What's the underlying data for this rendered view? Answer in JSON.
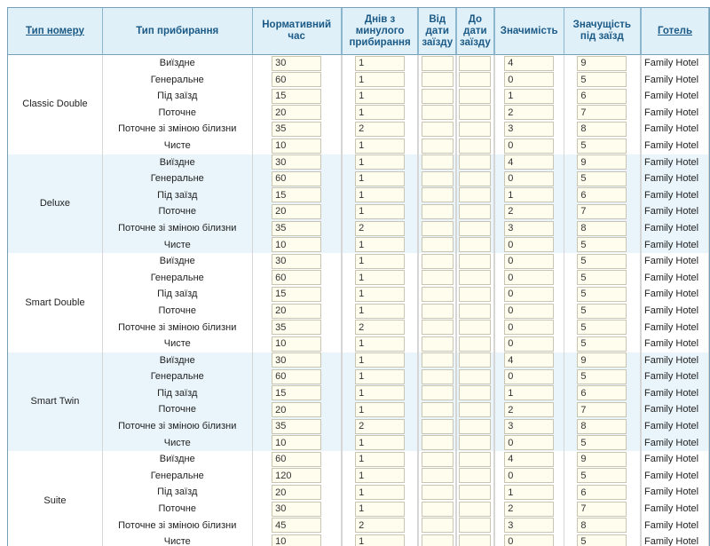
{
  "colors": {
    "header_bg": "#dff0f9",
    "header_text": "#1b5a86",
    "outer_border": "#76a0b8",
    "minor_border": "#d6d6d6",
    "stripe_bg": "#e9f5fb",
    "input_bg": "#fffdee",
    "input_border": "#c9c5b2",
    "body_text": "#222222"
  },
  "table": {
    "columns": [
      {
        "label": "Тип номеру",
        "link": true
      },
      {
        "label": "Тип прибирання",
        "link": false
      },
      {
        "label": "Нормативний час",
        "link": false
      },
      {
        "label": "Днів з минулого прибирання",
        "link": false
      },
      {
        "label": "Від дати заїзду",
        "link": false
      },
      {
        "label": "До дати заїзду",
        "link": false
      },
      {
        "label": "Значимість",
        "link": false
      },
      {
        "label": "Значущість під заїзд",
        "link": false
      },
      {
        "label": "Готель",
        "link": true
      }
    ],
    "groups": [
      {
        "room_type": "Classic Double",
        "rows": [
          {
            "cleaning_type": "Виїздне",
            "norm_time": "30",
            "days_since": "1",
            "from_date": "",
            "to_date": "",
            "significance": "4",
            "checkin_significance": "9",
            "hotel": "Family Hotel"
          },
          {
            "cleaning_type": "Генеральне",
            "norm_time": "60",
            "days_since": "1",
            "from_date": "",
            "to_date": "",
            "significance": "0",
            "checkin_significance": "5",
            "hotel": "Family Hotel"
          },
          {
            "cleaning_type": "Під заїзд",
            "norm_time": "15",
            "days_since": "1",
            "from_date": "",
            "to_date": "",
            "significance": "1",
            "checkin_significance": "6",
            "hotel": "Family Hotel"
          },
          {
            "cleaning_type": "Поточне",
            "norm_time": "20",
            "days_since": "1",
            "from_date": "",
            "to_date": "",
            "significance": "2",
            "checkin_significance": "7",
            "hotel": "Family Hotel"
          },
          {
            "cleaning_type": "Поточне зі зміною білизни",
            "norm_time": "35",
            "days_since": "2",
            "from_date": "",
            "to_date": "",
            "significance": "3",
            "checkin_significance": "8",
            "hotel": "Family Hotel"
          },
          {
            "cleaning_type": "Чисте",
            "norm_time": "10",
            "days_since": "1",
            "from_date": "",
            "to_date": "",
            "significance": "0",
            "checkin_significance": "5",
            "hotel": "Family Hotel"
          }
        ]
      },
      {
        "room_type": "Deluxe",
        "rows": [
          {
            "cleaning_type": "Виїздне",
            "norm_time": "30",
            "days_since": "1",
            "from_date": "",
            "to_date": "",
            "significance": "4",
            "checkin_significance": "9",
            "hotel": "Family Hotel"
          },
          {
            "cleaning_type": "Генеральне",
            "norm_time": "60",
            "days_since": "1",
            "from_date": "",
            "to_date": "",
            "significance": "0",
            "checkin_significance": "5",
            "hotel": "Family Hotel"
          },
          {
            "cleaning_type": "Під заїзд",
            "norm_time": "15",
            "days_since": "1",
            "from_date": "",
            "to_date": "",
            "significance": "1",
            "checkin_significance": "6",
            "hotel": "Family Hotel"
          },
          {
            "cleaning_type": "Поточне",
            "norm_time": "20",
            "days_since": "1",
            "from_date": "",
            "to_date": "",
            "significance": "2",
            "checkin_significance": "7",
            "hotel": "Family Hotel"
          },
          {
            "cleaning_type": "Поточне зі зміною білизни",
            "norm_time": "35",
            "days_since": "2",
            "from_date": "",
            "to_date": "",
            "significance": "3",
            "checkin_significance": "8",
            "hotel": "Family Hotel"
          },
          {
            "cleaning_type": "Чисте",
            "norm_time": "10",
            "days_since": "1",
            "from_date": "",
            "to_date": "",
            "significance": "0",
            "checkin_significance": "5",
            "hotel": "Family Hotel"
          }
        ]
      },
      {
        "room_type": "Smart Double",
        "rows": [
          {
            "cleaning_type": "Виїздне",
            "norm_time": "30",
            "days_since": "1",
            "from_date": "",
            "to_date": "",
            "significance": "0",
            "checkin_significance": "5",
            "hotel": "Family Hotel"
          },
          {
            "cleaning_type": "Генеральне",
            "norm_time": "60",
            "days_since": "1",
            "from_date": "",
            "to_date": "",
            "significance": "0",
            "checkin_significance": "5",
            "hotel": "Family Hotel"
          },
          {
            "cleaning_type": "Під заїзд",
            "norm_time": "15",
            "days_since": "1",
            "from_date": "",
            "to_date": "",
            "significance": "0",
            "checkin_significance": "5",
            "hotel": "Family Hotel"
          },
          {
            "cleaning_type": "Поточне",
            "norm_time": "20",
            "days_since": "1",
            "from_date": "",
            "to_date": "",
            "significance": "0",
            "checkin_significance": "5",
            "hotel": "Family Hotel"
          },
          {
            "cleaning_type": "Поточне зі зміною білизни",
            "norm_time": "35",
            "days_since": "2",
            "from_date": "",
            "to_date": "",
            "significance": "0",
            "checkin_significance": "5",
            "hotel": "Family Hotel"
          },
          {
            "cleaning_type": "Чисте",
            "norm_time": "10",
            "days_since": "1",
            "from_date": "",
            "to_date": "",
            "significance": "0",
            "checkin_significance": "5",
            "hotel": "Family Hotel"
          }
        ]
      },
      {
        "room_type": "Smart Twin",
        "rows": [
          {
            "cleaning_type": "Виїздне",
            "norm_time": "30",
            "days_since": "1",
            "from_date": "",
            "to_date": "",
            "significance": "4",
            "checkin_significance": "9",
            "hotel": "Family Hotel"
          },
          {
            "cleaning_type": "Генеральне",
            "norm_time": "60",
            "days_since": "1",
            "from_date": "",
            "to_date": "",
            "significance": "0",
            "checkin_significance": "5",
            "hotel": "Family Hotel"
          },
          {
            "cleaning_type": "Під заїзд",
            "norm_time": "15",
            "days_since": "1",
            "from_date": "",
            "to_date": "",
            "significance": "1",
            "checkin_significance": "6",
            "hotel": "Family Hotel"
          },
          {
            "cleaning_type": "Поточне",
            "norm_time": "20",
            "days_since": "1",
            "from_date": "",
            "to_date": "",
            "significance": "2",
            "checkin_significance": "7",
            "hotel": "Family Hotel"
          },
          {
            "cleaning_type": "Поточне зі зміною білизни",
            "norm_time": "35",
            "days_since": "2",
            "from_date": "",
            "to_date": "",
            "significance": "3",
            "checkin_significance": "8",
            "hotel": "Family Hotel"
          },
          {
            "cleaning_type": "Чисте",
            "norm_time": "10",
            "days_since": "1",
            "from_date": "",
            "to_date": "",
            "significance": "0",
            "checkin_significance": "5",
            "hotel": "Family Hotel"
          }
        ]
      },
      {
        "room_type": "Suite",
        "rows": [
          {
            "cleaning_type": "Виїздне",
            "norm_time": "60",
            "days_since": "1",
            "from_date": "",
            "to_date": "",
            "significance": "4",
            "checkin_significance": "9",
            "hotel": "Family Hotel"
          },
          {
            "cleaning_type": "Генеральне",
            "norm_time": "120",
            "days_since": "1",
            "from_date": "",
            "to_date": "",
            "significance": "0",
            "checkin_significance": "5",
            "hotel": "Family Hotel"
          },
          {
            "cleaning_type": "Під заїзд",
            "norm_time": "20",
            "days_since": "1",
            "from_date": "",
            "to_date": "",
            "significance": "1",
            "checkin_significance": "6",
            "hotel": "Family Hotel"
          },
          {
            "cleaning_type": "Поточне",
            "norm_time": "30",
            "days_since": "1",
            "from_date": "",
            "to_date": "",
            "significance": "2",
            "checkin_significance": "7",
            "hotel": "Family Hotel"
          },
          {
            "cleaning_type": "Поточне зі зміною білизни",
            "norm_time": "45",
            "days_since": "2",
            "from_date": "",
            "to_date": "",
            "significance": "3",
            "checkin_significance": "8",
            "hotel": "Family Hotel"
          },
          {
            "cleaning_type": "Чисте",
            "norm_time": "10",
            "days_since": "1",
            "from_date": "",
            "to_date": "",
            "significance": "0",
            "checkin_significance": "5",
            "hotel": "Family Hotel"
          }
        ]
      }
    ]
  }
}
